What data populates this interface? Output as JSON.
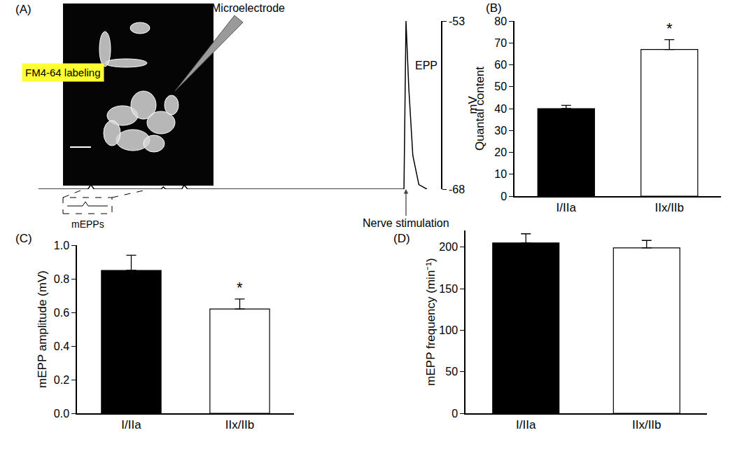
{
  "chart_data": [
    {
      "type": "line",
      "label": "(A)",
      "x": [
        0,
        12.3,
        13,
        13.8,
        30.5,
        31,
        31.6,
        35.6,
        36.2,
        37,
        90.8,
        91.3,
        92,
        93,
        94.5,
        96.5
      ],
      "values": [
        -68,
        -68,
        -67.6,
        -68,
        -68,
        -67.8,
        -68,
        -68,
        -67.6,
        -68,
        -68,
        -53,
        -59,
        -65,
        -67.6,
        -68
      ],
      "color": "#000000",
      "xlim": [
        0,
        100
      ],
      "ylim": [
        -68,
        -53
      ],
      "yticks": [
        -68,
        -53
      ],
      "y_label": "mV",
      "tick_labels": "y",
      "grid": false,
      "annotations": [
        "FM4-64 labeling",
        "Microelectrode",
        "EPP",
        "mEPPs",
        "Nerve stimulation"
      ]
    },
    {
      "type": "bar",
      "label": "(B)",
      "categories": [
        "I/IIa",
        "IIx/IIb"
      ],
      "values": [
        40,
        67
      ],
      "errors": [
        1.5,
        4.5
      ],
      "colors": [
        "#000000",
        "#ffffff"
      ],
      "y_label": "Quantal content",
      "ylim": [
        0,
        80
      ],
      "yticks": [
        0,
        10,
        20,
        30,
        40,
        50,
        60,
        70,
        80
      ],
      "grid": false,
      "annotations": [
        {
          "category": "IIx/IIb",
          "text": "*"
        }
      ]
    },
    {
      "type": "bar",
      "label": "(C)",
      "categories": [
        "I/IIa",
        "IIx/IIb"
      ],
      "values": [
        0.85,
        0.62
      ],
      "errors": [
        0.09,
        0.06
      ],
      "colors": [
        "#000000",
        "#ffffff"
      ],
      "y_label": "mEPP amplitude (mV)",
      "ylim": [
        0,
        1.0
      ],
      "yticks": [
        {
          "value": 0,
          "label": "0.0"
        },
        0.2,
        0.4,
        0.6,
        0.8,
        {
          "value": 1,
          "label": "1.0"
        }
      ],
      "grid": false,
      "annotations": [
        {
          "category": "IIx/IIb",
          "text": "*"
        }
      ]
    },
    {
      "type": "bar",
      "label": "(D)",
      "categories": [
        "I/IIa",
        "IIx/IIb"
      ],
      "values": [
        205,
        199
      ],
      "errors": [
        11,
        9
      ],
      "colors": [
        "#000000",
        "#ffffff"
      ],
      "y_label": "mEPP frequency (min⁻¹)",
      "ylim": [
        0,
        220
      ],
      "yticks": [
        0,
        50,
        100,
        150,
        200
      ],
      "grid": false
    }
  ]
}
